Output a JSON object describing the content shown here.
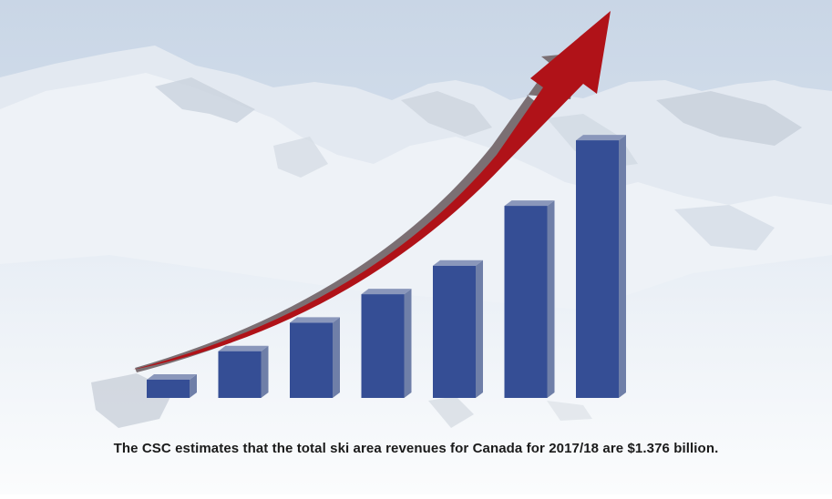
{
  "caption": "The CSC estimates that the total ski area revenues for Canada for 2017/18 are $1.376 billion.",
  "colors": {
    "bar_front": "#354e95",
    "bar_side": "#6f7fa8",
    "bar_top": "#8a97bb",
    "arrow": "#b01218",
    "arrow_shadow": "#7b6f73",
    "sky": "#cfd9e6",
    "snow": "#f4f7fa"
  },
  "chart_data": {
    "type": "bar",
    "categories": [
      "",
      "",
      "",
      "",
      "",
      "",
      ""
    ],
    "values": [
      1,
      2,
      3,
      4,
      5,
      7.1,
      9.4
    ],
    "trend_arrow": "up"
  }
}
